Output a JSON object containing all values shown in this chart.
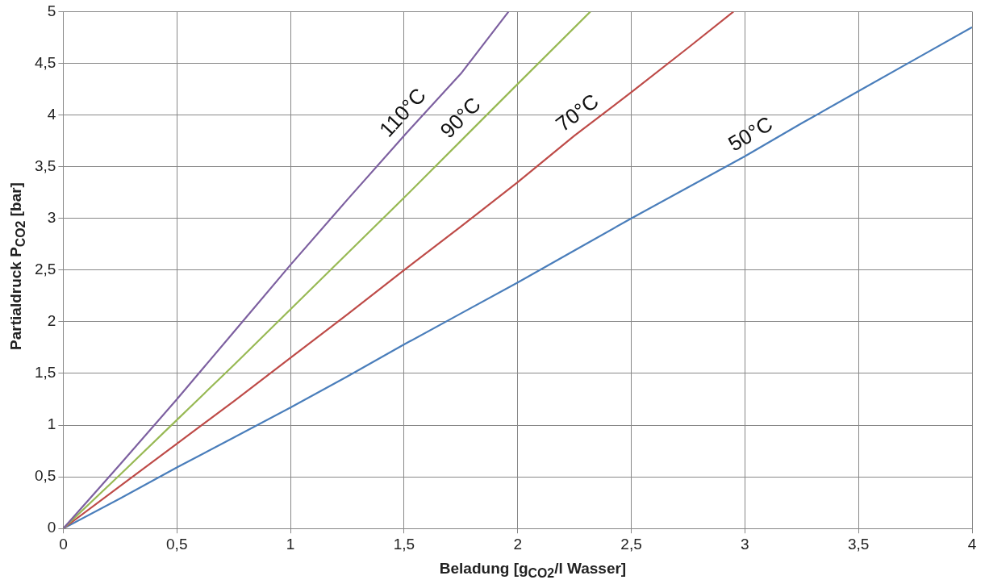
{
  "chart_data": {
    "type": "line",
    "xlabel": "Beladung [g$_{CO2}$/l Wasser]",
    "ylabel": "Partialdruck P$_{CO2}$ [bar]",
    "xlim": [
      0,
      4
    ],
    "ylim": [
      0,
      5
    ],
    "xticks": [
      0,
      {
        "value": 0.5,
        "label": "0,5"
      },
      1,
      {
        "value": 1.5,
        "label": "1,5"
      },
      2,
      {
        "value": 2.5,
        "label": "2,5"
      },
      3,
      {
        "value": 3.5,
        "label": "3,5"
      },
      4
    ],
    "yticks": [
      0,
      {
        "value": 0.5,
        "label": "0,5"
      },
      1,
      {
        "value": 1.5,
        "label": "1,5"
      },
      2,
      {
        "value": 2.5,
        "label": "2,5"
      },
      3,
      {
        "value": 3.5,
        "label": "3,5"
      },
      4,
      {
        "value": 4.5,
        "label": "4,5"
      },
      5
    ],
    "grid": true,
    "legend": false,
    "marker": "none",
    "line_style": "solid",
    "series": [
      {
        "name": "110°C",
        "color": "#7d60a0",
        "x": [
          0,
          0.25,
          0.5,
          0.75,
          1,
          1.25,
          1.5,
          1.75,
          1.96
        ],
        "values": [
          0,
          0.62,
          1.25,
          1.9,
          2.55,
          3.18,
          3.8,
          4.4,
          5
        ]
      },
      {
        "name": "90°C",
        "color": "#98b954",
        "x": [
          0,
          0.25,
          0.5,
          0.75,
          1,
          1.25,
          1.5,
          1.75,
          2,
          2.32
        ],
        "values": [
          0,
          0.52,
          1.05,
          1.58,
          2.12,
          2.66,
          3.2,
          3.75,
          4.3,
          5
        ]
      },
      {
        "name": "70°C",
        "color": "#be4b48",
        "x": [
          0,
          0.25,
          0.5,
          0.75,
          1,
          1.25,
          1.5,
          1.75,
          2,
          2.25,
          2.5,
          2.75,
          2.95
        ],
        "values": [
          0,
          0.41,
          0.82,
          1.23,
          1.65,
          2.07,
          2.5,
          2.92,
          3.35,
          3.8,
          4.22,
          4.65,
          5
        ]
      },
      {
        "name": "50°C",
        "color": "#4a7ebb",
        "x": [
          0,
          0.25,
          0.5,
          0.75,
          1,
          1.25,
          1.5,
          1.75,
          2,
          2.25,
          2.5,
          2.75,
          3,
          3.25,
          3.5,
          3.75,
          4
        ],
        "values": [
          0,
          0.29,
          0.59,
          0.88,
          1.17,
          1.47,
          1.78,
          2.08,
          2.38,
          2.69,
          3,
          3.3,
          3.6,
          3.92,
          4.23,
          4.54,
          4.85
        ]
      }
    ]
  }
}
